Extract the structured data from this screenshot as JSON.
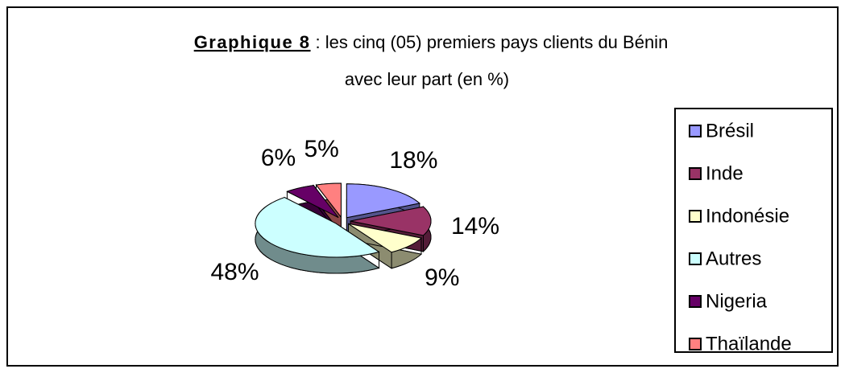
{
  "chart_data": {
    "type": "pie",
    "title_label": "Graphique 8",
    "title": [
      ": les cinq (05) premiers pays clients du Bénin",
      "avec leur part (en %)"
    ],
    "categories": [
      "Brésil",
      "Inde",
      "Indonésie",
      "Autres",
      "Nigeria",
      "Thaïlande"
    ],
    "values": [
      18,
      14,
      9,
      48,
      6,
      5
    ],
    "value_labels": [
      "18%",
      "14%",
      "9%",
      "48%",
      "6%",
      "5%"
    ],
    "colors": [
      "#9999ff",
      "#993366",
      "#ffffcc",
      "#ccffff",
      "#660066",
      "#ff8080"
    ],
    "legend": "right"
  }
}
